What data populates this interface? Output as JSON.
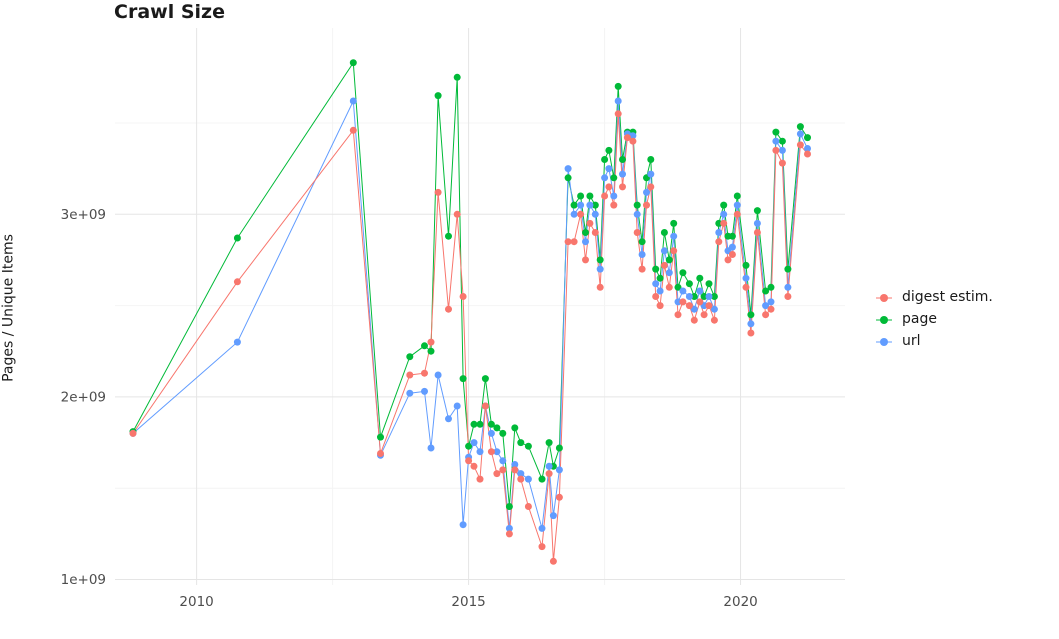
{
  "chart_data": {
    "type": "line",
    "title": "Crawl Size",
    "xlabel": "",
    "ylabel": "Pages / Unique Items",
    "value_unit": "1e+09 (billions of pages/items)",
    "legend_position": "right",
    "grid": true,
    "x_range": [
      2008.5,
      2021.92
    ],
    "y_range": [
      0.97,
      4.02
    ],
    "x_ticks": [
      2010,
      2015,
      2020
    ],
    "x_tick_labels": [
      "2010",
      "2015",
      "2020"
    ],
    "x_minor": [
      2012.5,
      2017.5
    ],
    "y_ticks": [
      1,
      2,
      3
    ],
    "y_tick_labels": [
      "1e+09",
      "2e+09",
      "3e+09"
    ],
    "y_minor": [
      1.5,
      2.5,
      3.5
    ],
    "x": [
      2008.83,
      2010.75,
      2012.88,
      2013.38,
      2013.92,
      2014.19,
      2014.31,
      2014.44,
      2014.63,
      2014.79,
      2014.9,
      2015.0,
      2015.1,
      2015.21,
      2015.31,
      2015.42,
      2015.52,
      2015.63,
      2015.75,
      2015.85,
      2015.96,
      2016.1,
      2016.35,
      2016.48,
      2016.56,
      2016.67,
      2016.83,
      2016.94,
      2017.06,
      2017.15,
      2017.23,
      2017.33,
      2017.42,
      2017.5,
      2017.58,
      2017.67,
      2017.75,
      2017.83,
      2017.92,
      2018.02,
      2018.1,
      2018.19,
      2018.27,
      2018.35,
      2018.44,
      2018.52,
      2018.6,
      2018.69,
      2018.77,
      2018.85,
      2018.94,
      2019.06,
      2019.15,
      2019.25,
      2019.33,
      2019.42,
      2019.52,
      2019.6,
      2019.69,
      2019.77,
      2019.85,
      2019.94,
      2020.1,
      2020.19,
      2020.31,
      2020.46,
      2020.56,
      2020.65,
      2020.77,
      2020.87,
      2021.1,
      2021.23
    ],
    "series": [
      {
        "key": "digest",
        "name": "digest estim.",
        "color": "#F8766D",
        "values": [
          1.8,
          2.63,
          3.46,
          1.69,
          2.12,
          2.13,
          2.3,
          3.12,
          2.48,
          3.0,
          2.55,
          1.65,
          1.62,
          1.55,
          1.95,
          1.7,
          1.58,
          1.6,
          1.25,
          1.6,
          1.55,
          1.4,
          1.18,
          1.58,
          1.1,
          1.45,
          2.85,
          2.85,
          3.0,
          2.75,
          2.95,
          2.9,
          2.6,
          3.1,
          3.15,
          3.05,
          3.55,
          3.15,
          3.42,
          3.4,
          2.9,
          2.7,
          3.05,
          3.15,
          2.55,
          2.5,
          2.72,
          2.6,
          2.8,
          2.45,
          2.52,
          2.5,
          2.42,
          2.52,
          2.45,
          2.5,
          2.42,
          2.85,
          2.95,
          2.75,
          2.78,
          3.0,
          2.6,
          2.35,
          2.9,
          2.45,
          2.48,
          3.35,
          3.28,
          2.55,
          3.38,
          3.33
        ]
      },
      {
        "key": "page",
        "name": "page",
        "color": "#00BA38",
        "values": [
          1.81,
          2.87,
          3.83,
          1.78,
          2.22,
          2.28,
          2.25,
          3.65,
          2.88,
          3.75,
          2.1,
          1.73,
          1.85,
          1.85,
          2.1,
          1.85,
          1.83,
          1.8,
          1.4,
          1.83,
          1.75,
          1.73,
          1.55,
          1.75,
          1.62,
          1.72,
          3.2,
          3.05,
          3.1,
          2.9,
          3.1,
          3.05,
          2.75,
          3.3,
          3.35,
          3.2,
          3.7,
          3.3,
          3.45,
          3.45,
          3.05,
          2.85,
          3.2,
          3.3,
          2.7,
          2.65,
          2.9,
          2.75,
          2.95,
          2.6,
          2.68,
          2.62,
          2.55,
          2.65,
          2.55,
          2.62,
          2.55,
          2.95,
          3.05,
          2.88,
          2.88,
          3.1,
          2.72,
          2.45,
          3.02,
          2.58,
          2.6,
          3.45,
          3.4,
          2.7,
          3.48,
          3.42
        ]
      },
      {
        "key": "url",
        "name": "url",
        "color": "#619CFF",
        "values": [
          1.8,
          2.3,
          3.62,
          1.68,
          2.02,
          2.03,
          1.72,
          2.12,
          1.88,
          1.95,
          1.3,
          1.67,
          1.75,
          1.7,
          1.95,
          1.8,
          1.7,
          1.65,
          1.28,
          1.63,
          1.58,
          1.55,
          1.28,
          1.62,
          1.35,
          1.6,
          3.25,
          3.0,
          3.05,
          2.85,
          3.05,
          3.0,
          2.7,
          3.2,
          3.25,
          3.1,
          3.62,
          3.22,
          3.44,
          3.43,
          3.0,
          2.78,
          3.12,
          3.22,
          2.62,
          2.58,
          2.8,
          2.68,
          2.88,
          2.52,
          2.58,
          2.55,
          2.48,
          2.58,
          2.5,
          2.55,
          2.48,
          2.9,
          3.0,
          2.8,
          2.82,
          3.05,
          2.65,
          2.4,
          2.95,
          2.5,
          2.52,
          3.4,
          3.35,
          2.6,
          3.44,
          3.36
        ]
      }
    ]
  }
}
